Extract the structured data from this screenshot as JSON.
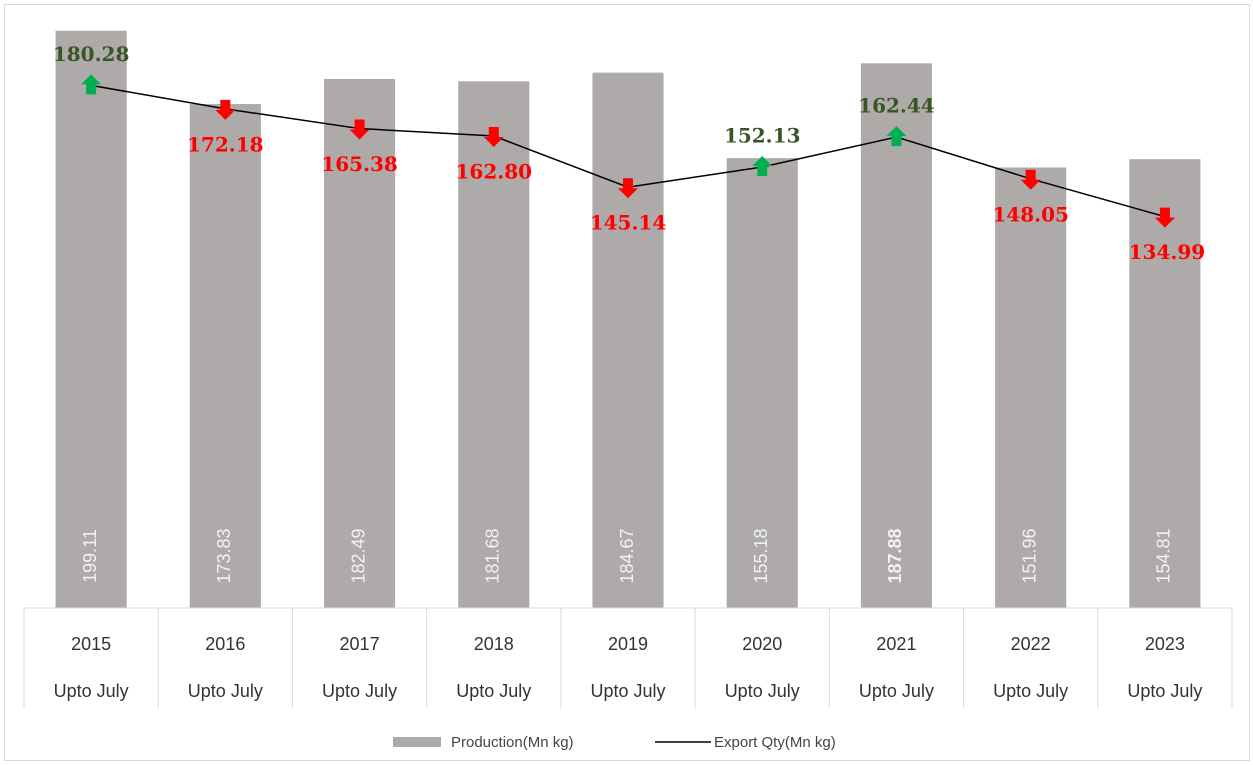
{
  "chart_data": {
    "type": "bar-line",
    "categories": [
      "2015",
      "2016",
      "2017",
      "2018",
      "2019",
      "2020",
      "2021",
      "2022",
      "2023"
    ],
    "x_sublabels": [
      "Upto July",
      "Upto July",
      "Upto July",
      "Upto July",
      "Upto July",
      "Upto July",
      "Upto July",
      "Upto July",
      "Upto July"
    ],
    "series": [
      {
        "name": "Production(Mn kg)",
        "kind": "bar",
        "color": "#aeaaaa",
        "label_color": "#f2f2f2",
        "values": [
          199.11,
          173.83,
          182.49,
          181.68,
          184.67,
          155.18,
          187.88,
          151.96,
          154.81
        ],
        "value_labels": [
          "199.11",
          "173.83",
          "182.49",
          "181.68",
          "184.67",
          "155.18",
          "187.88",
          "151.96",
          "154.81"
        ],
        "label_bold": [
          false,
          false,
          false,
          false,
          false,
          false,
          true,
          false,
          false
        ]
      },
      {
        "name": "Export Qty(Mn kg)",
        "kind": "line",
        "color": "#000000",
        "values": [
          180.28,
          172.18,
          165.38,
          162.8,
          145.14,
          152.13,
          162.44,
          148.05,
          134.99
        ],
        "value_labels": [
          "180.28",
          "172.18",
          "165.38",
          "162.80",
          "145.14",
          "152.13",
          "162.44",
          "148.05",
          "134.99"
        ],
        "marker_directions": [
          "up",
          "down",
          "down",
          "down",
          "down",
          "up",
          "up",
          "down",
          "down"
        ],
        "up_color": "#00b050",
        "down_color": "#ff0000",
        "up_label_color": "#375623",
        "down_label_color": "#ff0000"
      }
    ],
    "ylim": [
      0,
      208
    ],
    "legend": "bottom"
  }
}
